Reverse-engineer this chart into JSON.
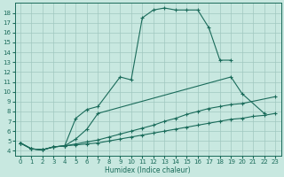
{
  "xlabel": "Humidex (Indice chaleur)",
  "bg_color": "#c8e8e0",
  "grid_color": "#a0c8c0",
  "line_color": "#1a6b5a",
  "xlim": [
    -0.5,
    23.5
  ],
  "ylim": [
    3.5,
    19.0
  ],
  "xticks": [
    0,
    1,
    2,
    3,
    4,
    5,
    6,
    7,
    8,
    9,
    10,
    11,
    12,
    13,
    14,
    15,
    16,
    17,
    18,
    19,
    20,
    21,
    22,
    23
  ],
  "yticks": [
    4,
    5,
    6,
    7,
    8,
    9,
    10,
    11,
    12,
    13,
    14,
    15,
    16,
    17,
    18
  ],
  "series": [
    {
      "x": [
        0,
        1,
        2,
        3,
        4,
        5,
        6,
        7,
        9,
        10,
        11,
        12,
        13,
        14,
        15,
        16,
        17,
        18,
        19
      ],
      "y": [
        4.8,
        4.2,
        4.1,
        4.4,
        4.5,
        7.3,
        8.2,
        8.5,
        11.5,
        11.2,
        17.5,
        18.3,
        18.5,
        18.3,
        18.3,
        18.3,
        16.5,
        13.2,
        13.2
      ]
    },
    {
      "x": [
        0,
        1,
        2,
        3,
        4,
        5,
        6,
        7,
        19,
        20,
        22
      ],
      "y": [
        4.8,
        4.2,
        4.1,
        4.4,
        4.5,
        5.2,
        6.2,
        7.8,
        11.5,
        9.8,
        7.8
      ]
    },
    {
      "x": [
        0,
        1,
        2,
        3,
        4,
        5,
        6,
        7,
        8,
        9,
        10,
        11,
        12,
        13,
        14,
        15,
        16,
        17,
        18,
        19,
        20,
        23
      ],
      "y": [
        4.8,
        4.2,
        4.1,
        4.4,
        4.5,
        4.7,
        4.9,
        5.1,
        5.4,
        5.7,
        6.0,
        6.3,
        6.6,
        7.0,
        7.3,
        7.7,
        8.0,
        8.3,
        8.5,
        8.7,
        8.8,
        9.5
      ]
    },
    {
      "x": [
        0,
        1,
        2,
        3,
        4,
        5,
        6,
        7,
        8,
        9,
        10,
        11,
        12,
        13,
        14,
        15,
        16,
        17,
        18,
        19,
        20,
        21,
        22,
        23
      ],
      "y": [
        4.8,
        4.2,
        4.1,
        4.4,
        4.5,
        4.6,
        4.7,
        4.8,
        5.0,
        5.2,
        5.4,
        5.6,
        5.8,
        6.0,
        6.2,
        6.4,
        6.6,
        6.8,
        7.0,
        7.2,
        7.3,
        7.5,
        7.6,
        7.8
      ]
    }
  ]
}
